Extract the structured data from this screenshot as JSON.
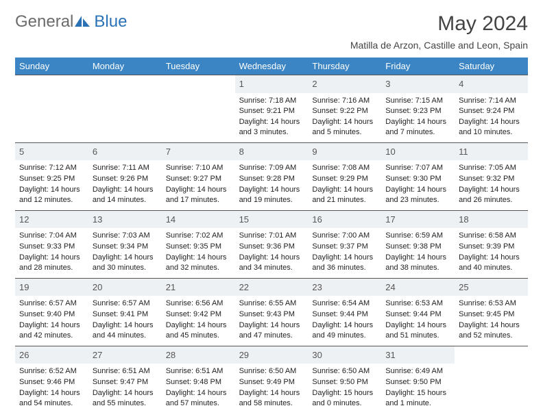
{
  "logo": {
    "text1": "General",
    "text2": "Blue"
  },
  "header": {
    "month_title": "May 2024",
    "subtitle": "Matilla de Arzon, Castille and Leon, Spain"
  },
  "colors": {
    "header_bg": "#3b85c5",
    "header_text": "#ffffff",
    "daynum_bg": "#eef1f3",
    "daynum_text": "#555555",
    "cell_border": "#555555",
    "body_text": "#222222",
    "logo_gray": "#6b6b6b",
    "logo_blue": "#2a72b5",
    "logo_icon": "#2a72b5",
    "page_bg": "#ffffff"
  },
  "layout": {
    "columns": 7,
    "cell_min_height": 90,
    "font_family": "Arial",
    "body_font_size": 11,
    "daynum_font_size": 13,
    "header_font_size": 13,
    "title_font_size": 30,
    "subtitle_font_size": 14
  },
  "day_names": [
    "Sunday",
    "Monday",
    "Tuesday",
    "Wednesday",
    "Thursday",
    "Friday",
    "Saturday"
  ],
  "weeks": [
    [
      null,
      null,
      null,
      {
        "n": "1",
        "sunrise": "Sunrise: 7:18 AM",
        "sunset": "Sunset: 9:21 PM",
        "daylight": "Daylight: 14 hours and 3 minutes."
      },
      {
        "n": "2",
        "sunrise": "Sunrise: 7:16 AM",
        "sunset": "Sunset: 9:22 PM",
        "daylight": "Daylight: 14 hours and 5 minutes."
      },
      {
        "n": "3",
        "sunrise": "Sunrise: 7:15 AM",
        "sunset": "Sunset: 9:23 PM",
        "daylight": "Daylight: 14 hours and 7 minutes."
      },
      {
        "n": "4",
        "sunrise": "Sunrise: 7:14 AM",
        "sunset": "Sunset: 9:24 PM",
        "daylight": "Daylight: 14 hours and 10 minutes."
      }
    ],
    [
      {
        "n": "5",
        "sunrise": "Sunrise: 7:12 AM",
        "sunset": "Sunset: 9:25 PM",
        "daylight": "Daylight: 14 hours and 12 minutes."
      },
      {
        "n": "6",
        "sunrise": "Sunrise: 7:11 AM",
        "sunset": "Sunset: 9:26 PM",
        "daylight": "Daylight: 14 hours and 14 minutes."
      },
      {
        "n": "7",
        "sunrise": "Sunrise: 7:10 AM",
        "sunset": "Sunset: 9:27 PM",
        "daylight": "Daylight: 14 hours and 17 minutes."
      },
      {
        "n": "8",
        "sunrise": "Sunrise: 7:09 AM",
        "sunset": "Sunset: 9:28 PM",
        "daylight": "Daylight: 14 hours and 19 minutes."
      },
      {
        "n": "9",
        "sunrise": "Sunrise: 7:08 AM",
        "sunset": "Sunset: 9:29 PM",
        "daylight": "Daylight: 14 hours and 21 minutes."
      },
      {
        "n": "10",
        "sunrise": "Sunrise: 7:07 AM",
        "sunset": "Sunset: 9:30 PM",
        "daylight": "Daylight: 14 hours and 23 minutes."
      },
      {
        "n": "11",
        "sunrise": "Sunrise: 7:05 AM",
        "sunset": "Sunset: 9:32 PM",
        "daylight": "Daylight: 14 hours and 26 minutes."
      }
    ],
    [
      {
        "n": "12",
        "sunrise": "Sunrise: 7:04 AM",
        "sunset": "Sunset: 9:33 PM",
        "daylight": "Daylight: 14 hours and 28 minutes."
      },
      {
        "n": "13",
        "sunrise": "Sunrise: 7:03 AM",
        "sunset": "Sunset: 9:34 PM",
        "daylight": "Daylight: 14 hours and 30 minutes."
      },
      {
        "n": "14",
        "sunrise": "Sunrise: 7:02 AM",
        "sunset": "Sunset: 9:35 PM",
        "daylight": "Daylight: 14 hours and 32 minutes."
      },
      {
        "n": "15",
        "sunrise": "Sunrise: 7:01 AM",
        "sunset": "Sunset: 9:36 PM",
        "daylight": "Daylight: 14 hours and 34 minutes."
      },
      {
        "n": "16",
        "sunrise": "Sunrise: 7:00 AM",
        "sunset": "Sunset: 9:37 PM",
        "daylight": "Daylight: 14 hours and 36 minutes."
      },
      {
        "n": "17",
        "sunrise": "Sunrise: 6:59 AM",
        "sunset": "Sunset: 9:38 PM",
        "daylight": "Daylight: 14 hours and 38 minutes."
      },
      {
        "n": "18",
        "sunrise": "Sunrise: 6:58 AM",
        "sunset": "Sunset: 9:39 PM",
        "daylight": "Daylight: 14 hours and 40 minutes."
      }
    ],
    [
      {
        "n": "19",
        "sunrise": "Sunrise: 6:57 AM",
        "sunset": "Sunset: 9:40 PM",
        "daylight": "Daylight: 14 hours and 42 minutes."
      },
      {
        "n": "20",
        "sunrise": "Sunrise: 6:57 AM",
        "sunset": "Sunset: 9:41 PM",
        "daylight": "Daylight: 14 hours and 44 minutes."
      },
      {
        "n": "21",
        "sunrise": "Sunrise: 6:56 AM",
        "sunset": "Sunset: 9:42 PM",
        "daylight": "Daylight: 14 hours and 45 minutes."
      },
      {
        "n": "22",
        "sunrise": "Sunrise: 6:55 AM",
        "sunset": "Sunset: 9:43 PM",
        "daylight": "Daylight: 14 hours and 47 minutes."
      },
      {
        "n": "23",
        "sunrise": "Sunrise: 6:54 AM",
        "sunset": "Sunset: 9:44 PM",
        "daylight": "Daylight: 14 hours and 49 minutes."
      },
      {
        "n": "24",
        "sunrise": "Sunrise: 6:53 AM",
        "sunset": "Sunset: 9:44 PM",
        "daylight": "Daylight: 14 hours and 51 minutes."
      },
      {
        "n": "25",
        "sunrise": "Sunrise: 6:53 AM",
        "sunset": "Sunset: 9:45 PM",
        "daylight": "Daylight: 14 hours and 52 minutes."
      }
    ],
    [
      {
        "n": "26",
        "sunrise": "Sunrise: 6:52 AM",
        "sunset": "Sunset: 9:46 PM",
        "daylight": "Daylight: 14 hours and 54 minutes."
      },
      {
        "n": "27",
        "sunrise": "Sunrise: 6:51 AM",
        "sunset": "Sunset: 9:47 PM",
        "daylight": "Daylight: 14 hours and 55 minutes."
      },
      {
        "n": "28",
        "sunrise": "Sunrise: 6:51 AM",
        "sunset": "Sunset: 9:48 PM",
        "daylight": "Daylight: 14 hours and 57 minutes."
      },
      {
        "n": "29",
        "sunrise": "Sunrise: 6:50 AM",
        "sunset": "Sunset: 9:49 PM",
        "daylight": "Daylight: 14 hours and 58 minutes."
      },
      {
        "n": "30",
        "sunrise": "Sunrise: 6:50 AM",
        "sunset": "Sunset: 9:50 PM",
        "daylight": "Daylight: 15 hours and 0 minutes."
      },
      {
        "n": "31",
        "sunrise": "Sunrise: 6:49 AM",
        "sunset": "Sunset: 9:50 PM",
        "daylight": "Daylight: 15 hours and 1 minute."
      },
      null
    ]
  ]
}
